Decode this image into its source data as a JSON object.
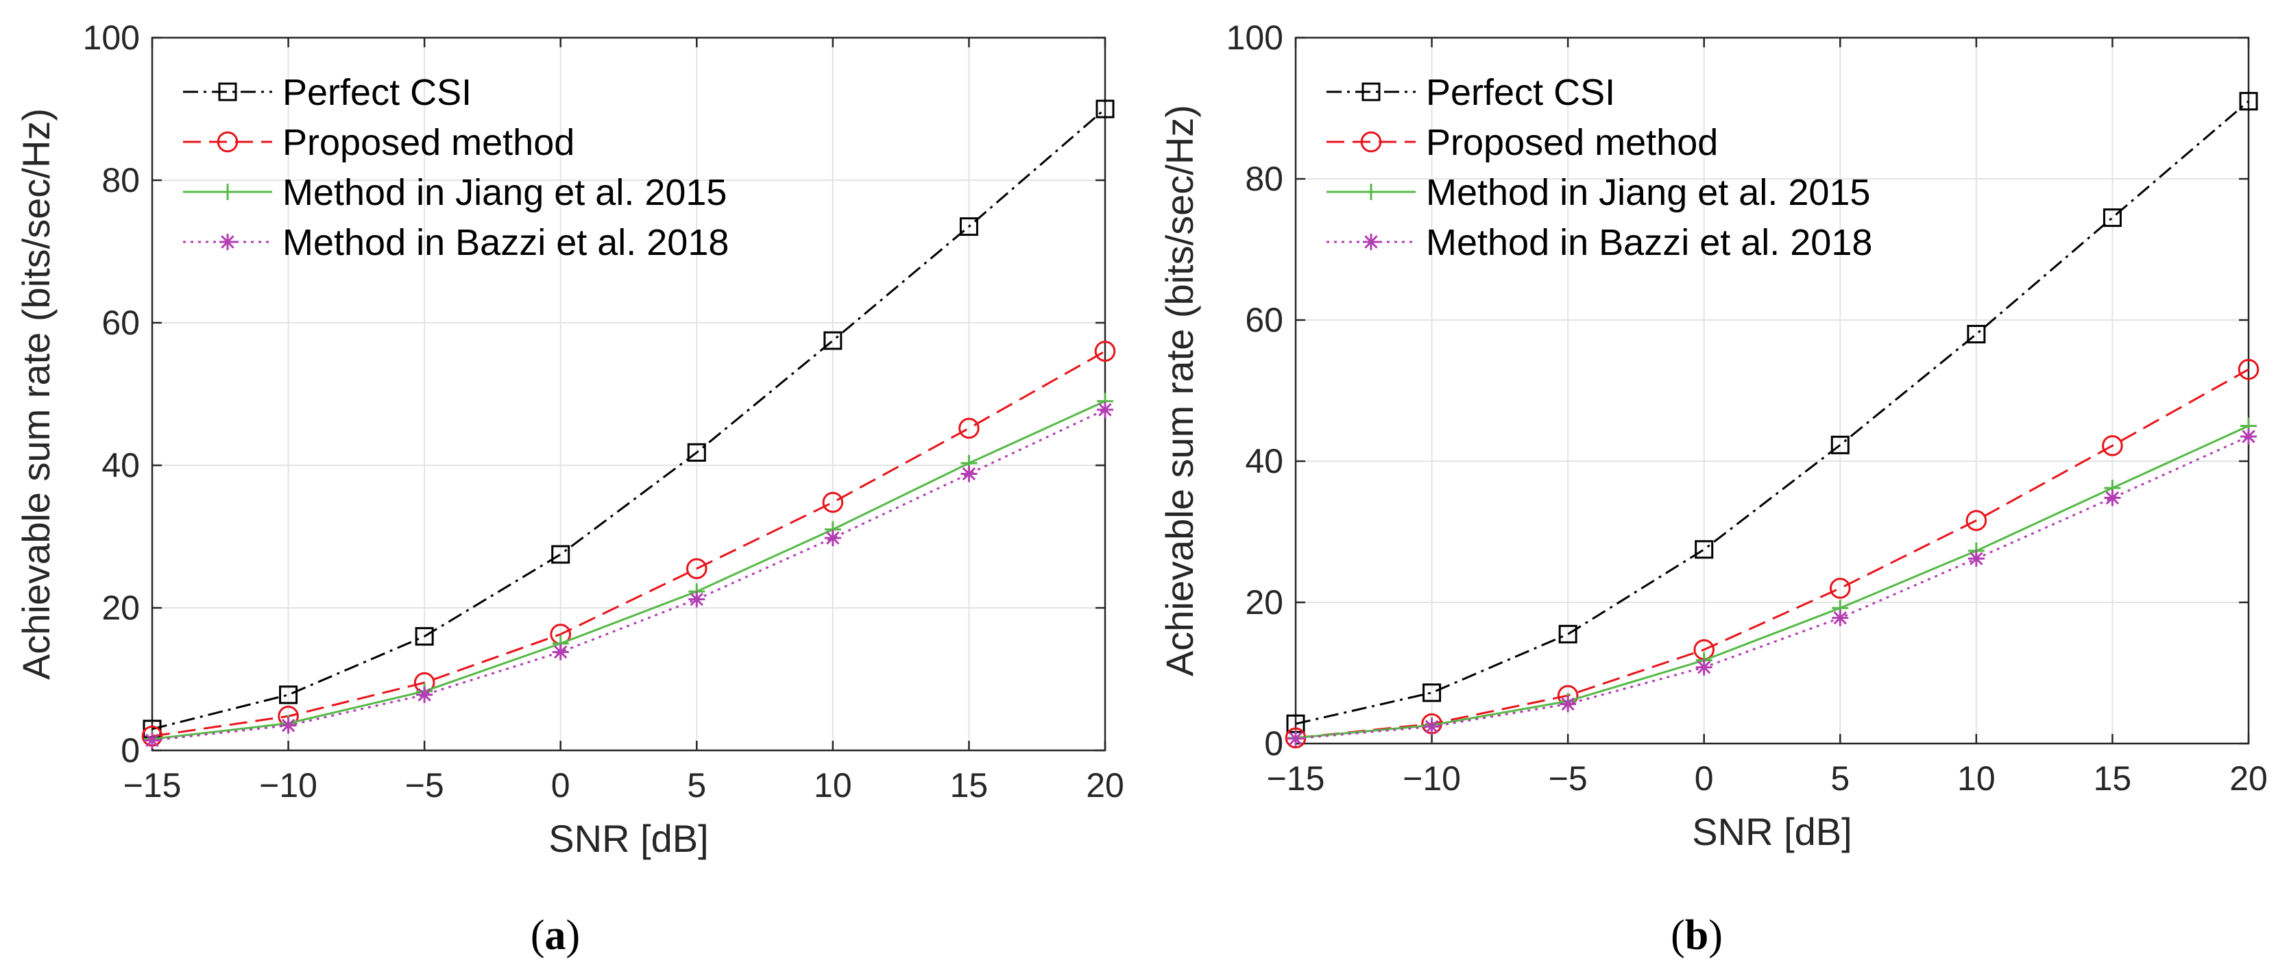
{
  "chart_data": [
    {
      "type": "line",
      "caption_letter": "a",
      "xlabel": "SNR [dB]",
      "ylabel": "Achievable sum rate (bits/sec/Hz)",
      "xlim": [
        -15,
        20
      ],
      "ylim": [
        0,
        100
      ],
      "xticks": [
        "−15",
        "−10",
        "−5",
        "0",
        "5",
        "10",
        "15",
        "20"
      ],
      "yticks": [
        "0",
        "20",
        "40",
        "60",
        "80",
        "100"
      ],
      "grid": true,
      "legend_position": "top-left",
      "x": [
        -15,
        -10,
        -5,
        0,
        5,
        10,
        15,
        20
      ],
      "series": [
        {
          "name": "Perfect CSI",
          "color": "#000000",
          "marker": "square",
          "dash": "dashdot",
          "values": [
            3.0,
            7.8,
            16.0,
            27.5,
            41.8,
            57.5,
            73.5,
            90.0
          ]
        },
        {
          "name": "Proposed method",
          "color": "#e8141b",
          "marker": "circle",
          "dash": "dash",
          "values": [
            2.0,
            4.8,
            9.5,
            16.3,
            25.5,
            34.8,
            45.2,
            56.0
          ]
        },
        {
          "name": "Method in Jiang et al. 2015",
          "color": "#55b947",
          "marker": "plus",
          "dash": "solid",
          "values": [
            1.6,
            3.8,
            8.3,
            15.0,
            22.3,
            31.0,
            40.3,
            49.0
          ]
        },
        {
          "name": "Method in Bazzi et al. 2018",
          "color": "#b33db3",
          "marker": "asterisk",
          "dash": "dot",
          "values": [
            1.4,
            3.5,
            7.8,
            13.8,
            21.2,
            29.8,
            38.8,
            47.8
          ]
        }
      ]
    },
    {
      "type": "line",
      "caption_letter": "b",
      "xlabel": "SNR [dB]",
      "ylabel": "Achievable sum rate (bits/sec/Hz)",
      "xlim": [
        -15,
        20
      ],
      "ylim": [
        0,
        100
      ],
      "xticks": [
        "−15",
        "−10",
        "−5",
        "0",
        "5",
        "10",
        "15",
        "20"
      ],
      "yticks": [
        "0",
        "20",
        "40",
        "60",
        "80",
        "100"
      ],
      "grid": true,
      "legend_position": "top-left",
      "x": [
        -15,
        -10,
        -5,
        0,
        5,
        10,
        15,
        20
      ],
      "series": [
        {
          "name": "Perfect CSI",
          "color": "#000000",
          "marker": "square",
          "dash": "dashdot",
          "values": [
            2.8,
            7.2,
            15.5,
            27.5,
            42.3,
            58.0,
            74.5,
            91.0
          ]
        },
        {
          "name": "Proposed method",
          "color": "#e8141b",
          "marker": "circle",
          "dash": "dash",
          "values": [
            0.8,
            2.8,
            6.8,
            13.3,
            22.0,
            31.6,
            42.2,
            53.0
          ]
        },
        {
          "name": "Method in Jiang et al. 2015",
          "color": "#55b947",
          "marker": "plus",
          "dash": "solid",
          "values": [
            0.8,
            2.6,
            6.0,
            11.8,
            19.2,
            27.3,
            36.2,
            45.0
          ]
        },
        {
          "name": "Method in Bazzi et al. 2018",
          "color": "#b33db3",
          "marker": "asterisk",
          "dash": "dot",
          "values": [
            0.7,
            2.4,
            5.6,
            10.8,
            17.8,
            26.2,
            34.8,
            43.5
          ]
        }
      ]
    }
  ]
}
